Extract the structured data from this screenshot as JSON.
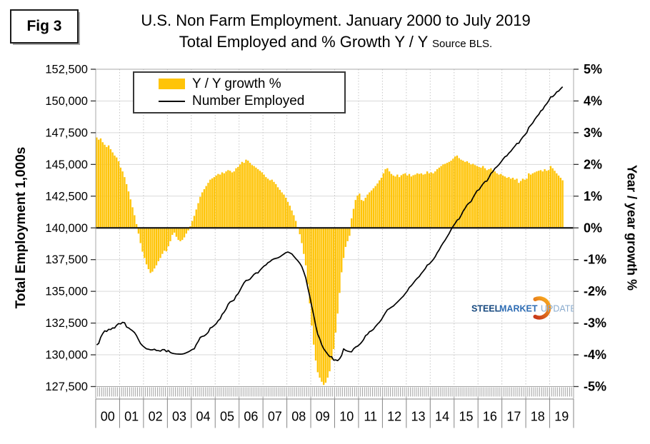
{
  "figure_label": "Fig 3",
  "title": {
    "line1": "U.S. Non Farm Employment. January 2000 to July 2019",
    "line2": "Total Employed and % Growth Y / Y",
    "source": "Source BLS."
  },
  "legend": {
    "bar_label": "Y / Y growth %",
    "line_label": "Number Employed"
  },
  "axes": {
    "left_title": "Total Employment 1,000s",
    "right_title": "Year / year growth %",
    "left_ticks": [
      "152,500",
      "150,000",
      "147,500",
      "145,000",
      "142,500",
      "140,000",
      "137,500",
      "135,000",
      "132,500",
      "130,000",
      "127,500"
    ],
    "right_ticks": [
      "5%",
      "4%",
      "3%",
      "2%",
      "1%",
      "0%",
      "-1%",
      "-2%",
      "-3%",
      "-4%",
      "-5%"
    ],
    "years": [
      "00",
      "01",
      "02",
      "03",
      "04",
      "05",
      "06",
      "07",
      "08",
      "09",
      "10",
      "11",
      "12",
      "13",
      "14",
      "15",
      "16",
      "17",
      "18",
      "19"
    ]
  },
  "logo": {
    "steel": "STEEL",
    "market": "MARKET",
    "update": "UPDATE"
  },
  "colors": {
    "bar": "#FFC408",
    "line": "#000000",
    "grid": "#d9d9d9",
    "grid_dotted": "#c6c6c6",
    "plot_border": "#a8a8a8",
    "zero_line": "#1a1a1a",
    "minor_tick": "#999999",
    "year_band": "#858585",
    "logo_dark_blue": "#17497f",
    "logo_mid_blue": "#2e6db4",
    "logo_light_blue": "#8aabce",
    "logo_orange_dark": "#c8391b",
    "logo_orange_light": "#f6a21d"
  },
  "chart_data": {
    "type": "combo",
    "title": "U.S. Non Farm Employment. January 2000 to July 2019",
    "subtitle": "Total Employed and % Growth Y / Y",
    "source": "Source BLS.",
    "x_frequency": "monthly",
    "x_start": "2000-01",
    "x_end": "2019-07",
    "x_year_labels": [
      "00",
      "01",
      "02",
      "03",
      "04",
      "05",
      "06",
      "07",
      "08",
      "09",
      "10",
      "11",
      "12",
      "13",
      "14",
      "15",
      "16",
      "17",
      "18",
      "19"
    ],
    "left_axis": {
      "label": "Total Employment 1,000s",
      "min": 127500,
      "max": 152500,
      "tick_step": 2500
    },
    "right_axis": {
      "label": "Year / year growth %",
      "min": -5,
      "max": 5,
      "tick_step": 1,
      "unit": "%"
    },
    "grid": true,
    "legend_position": "top-left-inside",
    "series": [
      {
        "name": "Y / Y growth %",
        "type": "bar",
        "axis": "right",
        "unit": "%",
        "values": [
          2.85,
          2.78,
          2.82,
          2.7,
          2.62,
          2.55,
          2.6,
          2.48,
          2.38,
          2.28,
          2.22,
          2.1,
          1.9,
          1.78,
          1.6,
          1.38,
          1.15,
          0.9,
          0.65,
          0.4,
          0.12,
          -0.18,
          -0.48,
          -0.75,
          -0.95,
          -1.15,
          -1.3,
          -1.42,
          -1.38,
          -1.28,
          -1.18,
          -1.05,
          -0.95,
          -0.82,
          -0.72,
          -0.74,
          -0.58,
          -0.42,
          -0.22,
          -0.15,
          -0.28,
          -0.38,
          -0.42,
          -0.38,
          -0.3,
          -0.18,
          -0.08,
          0.05,
          0.22,
          0.38,
          0.58,
          0.78,
          0.98,
          1.12,
          1.22,
          1.32,
          1.42,
          1.52,
          1.56,
          1.6,
          1.65,
          1.7,
          1.68,
          1.75,
          1.72,
          1.78,
          1.82,
          1.8,
          1.75,
          1.78,
          1.88,
          1.92,
          2.0,
          2.08,
          2.05,
          2.15,
          2.12,
          2.05,
          1.98,
          1.95,
          1.9,
          1.85,
          1.8,
          1.75,
          1.68,
          1.6,
          1.55,
          1.5,
          1.52,
          1.45,
          1.38,
          1.28,
          1.2,
          1.12,
          1.05,
          0.95,
          0.82,
          0.7,
          0.55,
          0.4,
          0.22,
          0.02,
          -0.2,
          -0.48,
          -0.82,
          -1.18,
          -1.78,
          -2.38,
          -3.08,
          -3.68,
          -4.18,
          -4.55,
          -4.72,
          -4.85,
          -4.95,
          -4.88,
          -4.72,
          -4.52,
          -4.15,
          -3.82,
          -3.3,
          -2.7,
          -2.05,
          -1.4,
          -0.95,
          -0.6,
          -0.42,
          -0.25,
          0.3,
          0.6,
          0.88,
          1.02,
          1.08,
          0.88,
          0.85,
          0.95,
          1.05,
          1.12,
          1.18,
          1.25,
          1.32,
          1.4,
          1.5,
          1.58,
          1.72,
          1.85,
          1.88,
          1.78,
          1.7,
          1.65,
          1.62,
          1.68,
          1.6,
          1.66,
          1.7,
          1.72,
          1.65,
          1.7,
          1.62,
          1.66,
          1.68,
          1.72,
          1.7,
          1.72,
          1.68,
          1.7,
          1.78,
          1.72,
          1.75,
          1.72,
          1.78,
          1.85,
          1.9,
          1.95,
          2.0,
          2.02,
          2.05,
          2.08,
          2.12,
          2.18,
          2.25,
          2.28,
          2.2,
          2.15,
          2.12,
          2.08,
          2.1,
          2.05,
          2.0,
          2.02,
          1.98,
          1.95,
          1.92,
          1.9,
          1.95,
          1.88,
          1.82,
          1.85,
          1.88,
          1.82,
          1.78,
          1.72,
          1.68,
          1.7,
          1.65,
          1.62,
          1.58,
          1.6,
          1.55,
          1.58,
          1.52,
          1.55,
          1.42,
          1.48,
          1.55,
          1.52,
          1.55,
          1.72,
          1.68,
          1.72,
          1.75,
          1.78,
          1.8,
          1.82,
          1.78,
          1.85,
          1.8,
          1.82,
          1.95,
          1.88,
          1.8,
          1.72,
          1.65,
          1.58,
          1.5
        ]
      },
      {
        "name": "Number Employed",
        "type": "line",
        "axis": "left",
        "unit": "thousands",
        "values": [
          130780,
          130900,
          131380,
          131670,
          131890,
          131840,
          132010,
          131990,
          132120,
          132110,
          132330,
          132460,
          132430,
          132560,
          132530,
          132190,
          132120,
          132000,
          131890,
          131750,
          131510,
          131190,
          130890,
          130720,
          130590,
          130470,
          130440,
          130390,
          130390,
          130440,
          130340,
          130330,
          130290,
          130410,
          130410,
          130250,
          130340,
          130180,
          130120,
          130090,
          130070,
          130060,
          130050,
          130060,
          130100,
          130160,
          130230,
          130320,
          130420,
          130470,
          130810,
          131060,
          131370,
          131450,
          131490,
          131610,
          131770,
          132110,
          132180,
          132310,
          132450,
          132690,
          132830,
          133190,
          133360,
          133610,
          133980,
          134170,
          134230,
          134310,
          134650,
          134810,
          135090,
          135400,
          135680,
          135860,
          135880,
          135960,
          136150,
          136340,
          136450,
          136450,
          136660,
          136830,
          136990,
          137080,
          137260,
          137340,
          137480,
          137560,
          137600,
          137640,
          137720,
          137830,
          137940,
          138050,
          138100,
          138030,
          137950,
          137760,
          137580,
          137410,
          137210,
          136950,
          136530,
          136060,
          135300,
          134610,
          133830,
          133110,
          132300,
          131620,
          131270,
          130800,
          130480,
          130260,
          130050,
          129860,
          129850,
          129580,
          129600,
          129540,
          129690,
          129950,
          130470,
          130350,
          130290,
          130250,
          130230,
          130470,
          130610,
          130680,
          130810,
          130980,
          131190,
          131510,
          131610,
          131820,
          131890,
          132010,
          132230,
          132410,
          132570,
          132770,
          133050,
          133310,
          133550,
          133640,
          133750,
          133840,
          134000,
          134150,
          134310,
          134470,
          134620,
          134830,
          135030,
          135310,
          135450,
          135650,
          135860,
          136030,
          136170,
          136400,
          136590,
          136790,
          137070,
          137150,
          137320,
          137500,
          137730,
          138040,
          138270,
          138570,
          138820,
          139040,
          139300,
          139560,
          139870,
          140130,
          140350,
          140610,
          140700,
          140980,
          141310,
          141540,
          141810,
          141960,
          142070,
          142380,
          142660,
          142930,
          143000,
          143240,
          143470,
          143650,
          143690,
          143970,
          144290,
          144440,
          144690,
          144820,
          144980,
          145180,
          145400,
          145600,
          145680,
          145890,
          146040,
          146250,
          146440,
          146650,
          146670,
          146940,
          147160,
          147320,
          147500,
          147910,
          148090,
          148270,
          148540,
          148760,
          148930,
          149210,
          149320,
          149600,
          149780,
          150010,
          150320,
          150340,
          150490,
          150710,
          150780,
          150960,
          151120
        ]
      }
    ]
  }
}
